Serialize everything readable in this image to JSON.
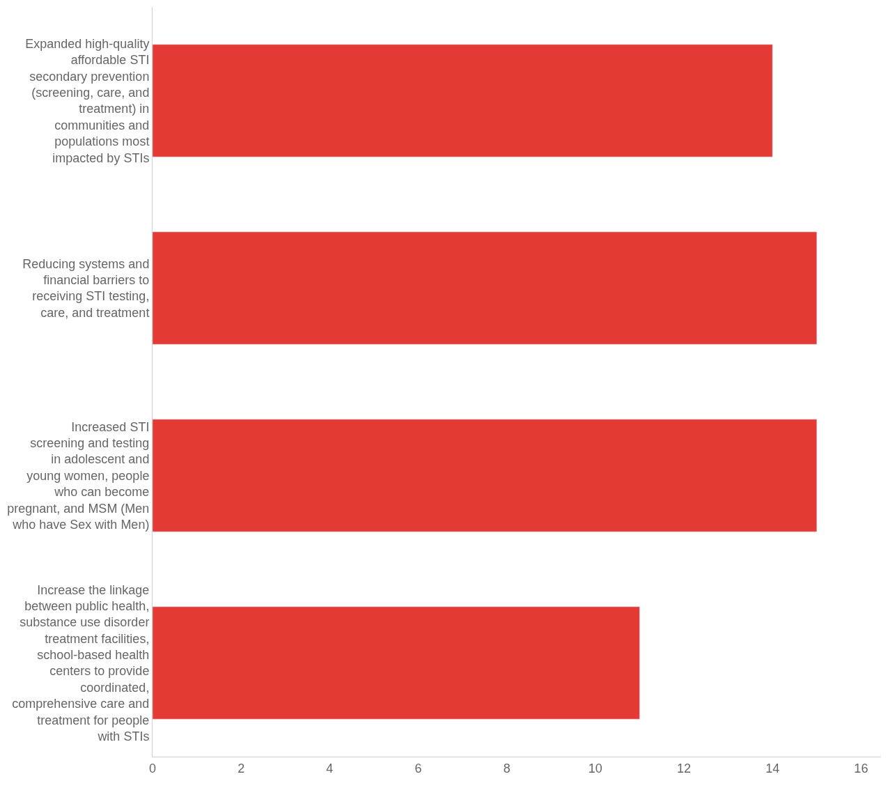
{
  "chart_data": {
    "type": "bar",
    "orientation": "horizontal",
    "categories": [
      "Expanded high-quality affordable STI secondary prevention (screening, care, and treatment) in communities and populations most impacted by STIs",
      "Reducing systems and financial barriers to receiving STI testing, care, and treatment",
      "Increased STI screening and testing in adolescent and young women, people who can become pregnant, and MSM (Men who have Sex with Men)",
      "Increase the linkage between public health, substance use disorder treatment facilities, school-based health centers to provide coordinated, comprehensive care and treatment for people with STIs"
    ],
    "values": [
      14,
      15,
      15,
      11
    ],
    "color": "#e43a36",
    "xlim": [
      0,
      16.45
    ],
    "xticks": [
      0,
      2,
      4,
      6,
      8,
      10,
      12,
      14,
      16
    ],
    "legend": false
  }
}
